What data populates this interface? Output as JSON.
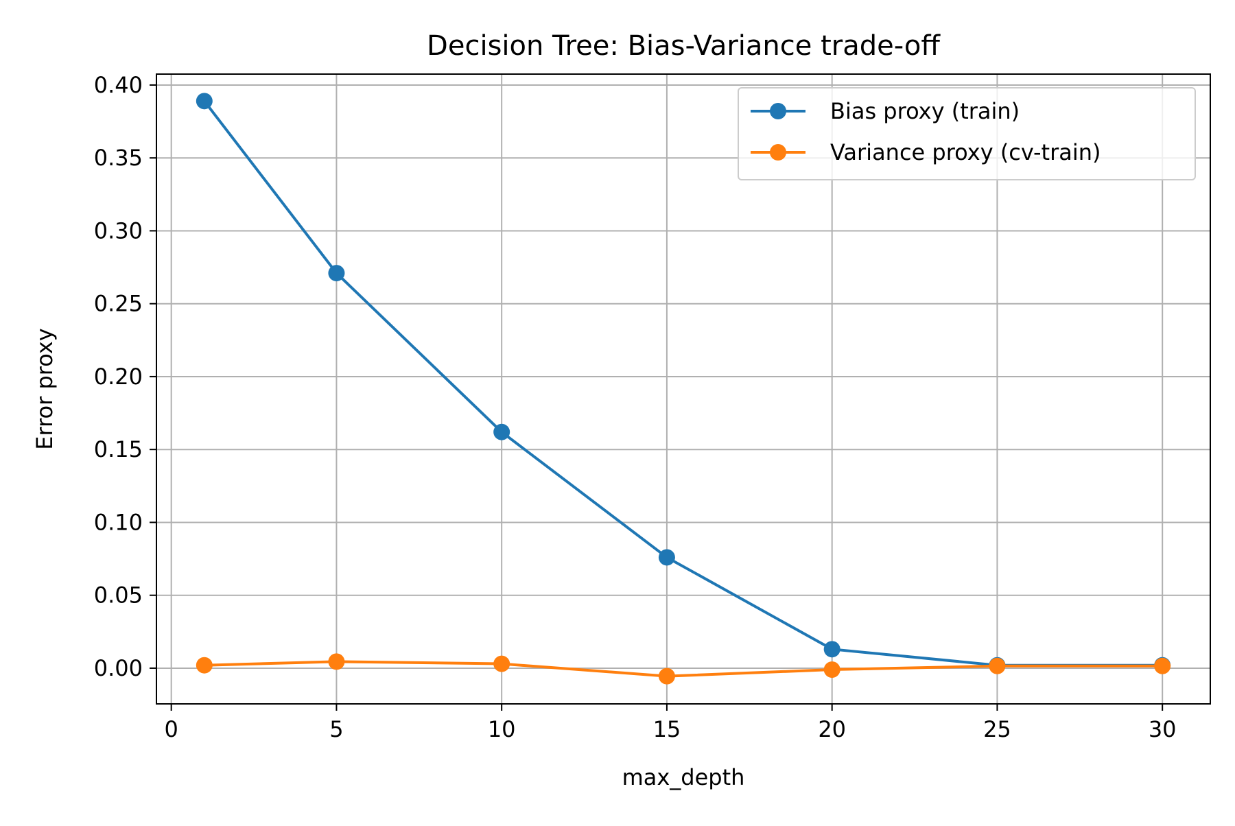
{
  "chart_data": {
    "type": "line",
    "title": "Decision Tree: Bias-Variance trade-off",
    "xlabel": "max_depth",
    "ylabel": "Error proxy",
    "xlim": [
      -0.45,
      31.45
    ],
    "ylim": [
      -0.0245,
      0.4075
    ],
    "x_ticks": [
      0,
      5,
      10,
      15,
      20,
      25,
      30
    ],
    "x_tick_labels": [
      "0",
      "5",
      "10",
      "15",
      "20",
      "25",
      "30"
    ],
    "y_ticks": [
      0.0,
      0.05,
      0.1,
      0.15,
      0.2,
      0.25,
      0.3,
      0.35,
      0.4
    ],
    "y_tick_labels": [
      "0.00",
      "0.05",
      "0.10",
      "0.15",
      "0.20",
      "0.25",
      "0.30",
      "0.35",
      "0.40"
    ],
    "grid": true,
    "legend_position": "top-right",
    "x": [
      1,
      5,
      10,
      15,
      20,
      25,
      30
    ],
    "series": [
      {
        "name": "Bias proxy (train)",
        "color": "#1f77b4",
        "marker": "circle",
        "values": [
          0.389,
          0.271,
          0.162,
          0.076,
          0.013,
          0.002,
          0.002
        ]
      },
      {
        "name": "Variance proxy (cv-train)",
        "color": "#ff7f0e",
        "marker": "circle",
        "values": [
          0.002,
          0.0045,
          0.003,
          -0.0055,
          -0.001,
          0.0015,
          0.0015
        ]
      }
    ]
  }
}
